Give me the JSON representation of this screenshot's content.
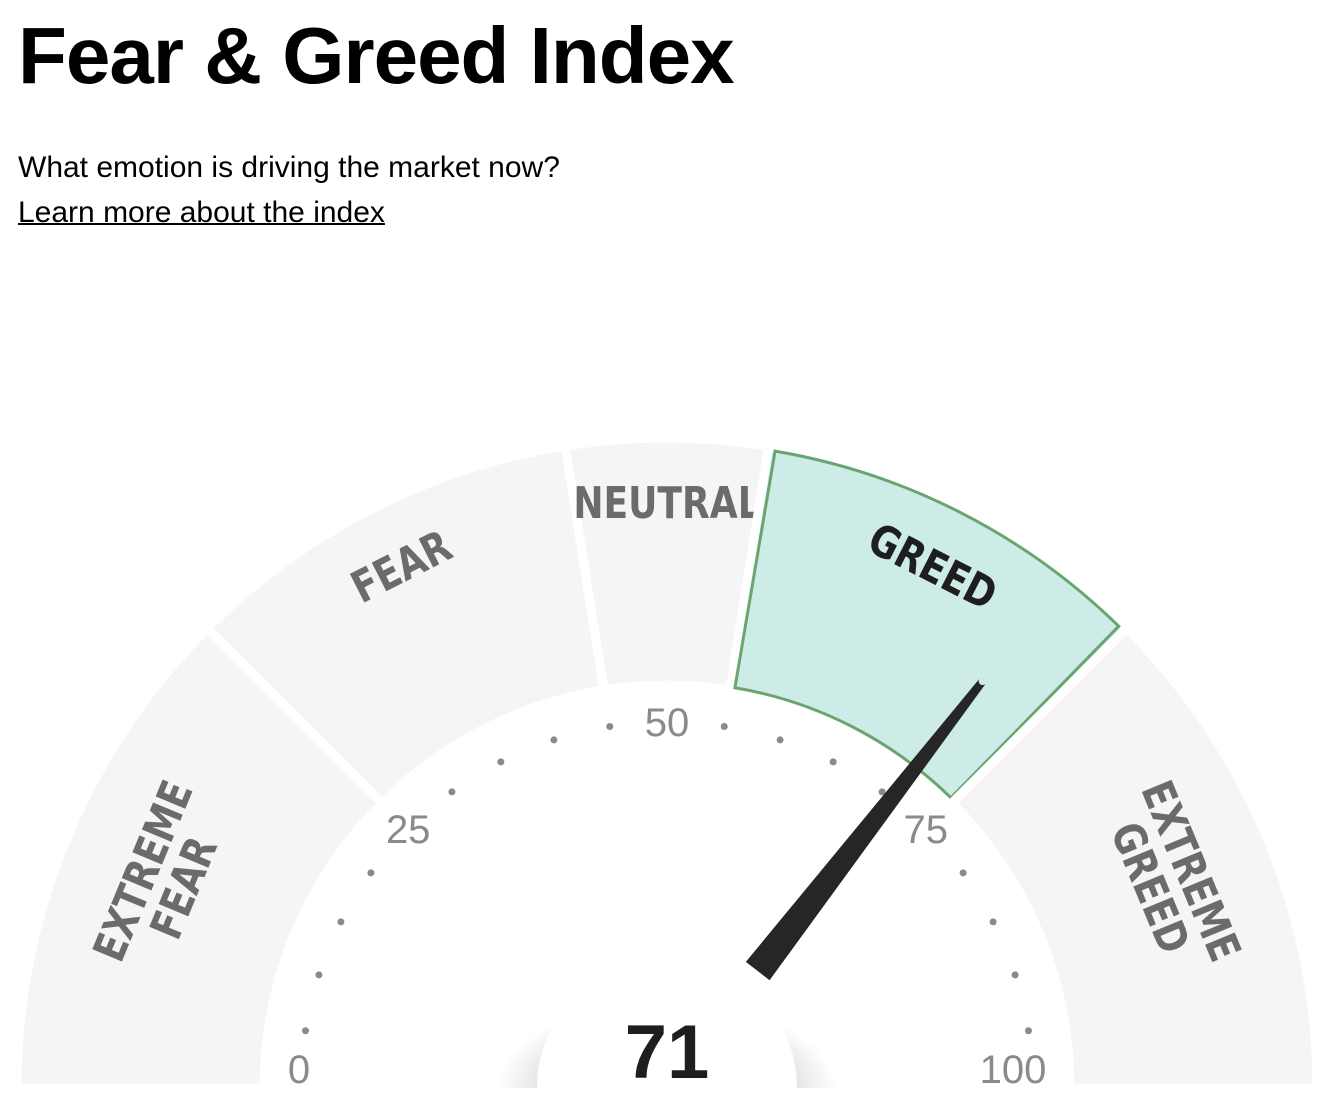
{
  "header": {
    "title": "Fear & Greed Index",
    "subtitle": "What emotion is driving the market now?",
    "learn_more_link": "Learn more about the index"
  },
  "gauge": {
    "value": 71,
    "value_text": "71",
    "range": [
      0,
      100
    ],
    "active_segment": "GREED",
    "segments": [
      {
        "lines": [
          "EXTREME",
          "FEAR"
        ],
        "from": 0,
        "to": 25
      },
      {
        "lines": [
          "FEAR"
        ],
        "from": 25,
        "to": 45
      },
      {
        "lines": [
          "NEUTRAL"
        ],
        "from": 45,
        "to": 55
      },
      {
        "lines": [
          "GREED"
        ],
        "from": 55,
        "to": 75
      },
      {
        "lines": [
          "EXTREME",
          "GREED"
        ],
        "from": 75,
        "to": 100
      }
    ],
    "tick_labels": [
      "0",
      "25",
      "50",
      "75",
      "100"
    ],
    "colors": {
      "segment_fill": "#f5f5f5",
      "active_fill": "#cdece8",
      "active_stroke": "#6aa56f",
      "label_text": "#6b6b6b",
      "active_label_text": "#1e1e1e",
      "needle": "#262626",
      "tick_dot": "#8a8a8a"
    }
  }
}
